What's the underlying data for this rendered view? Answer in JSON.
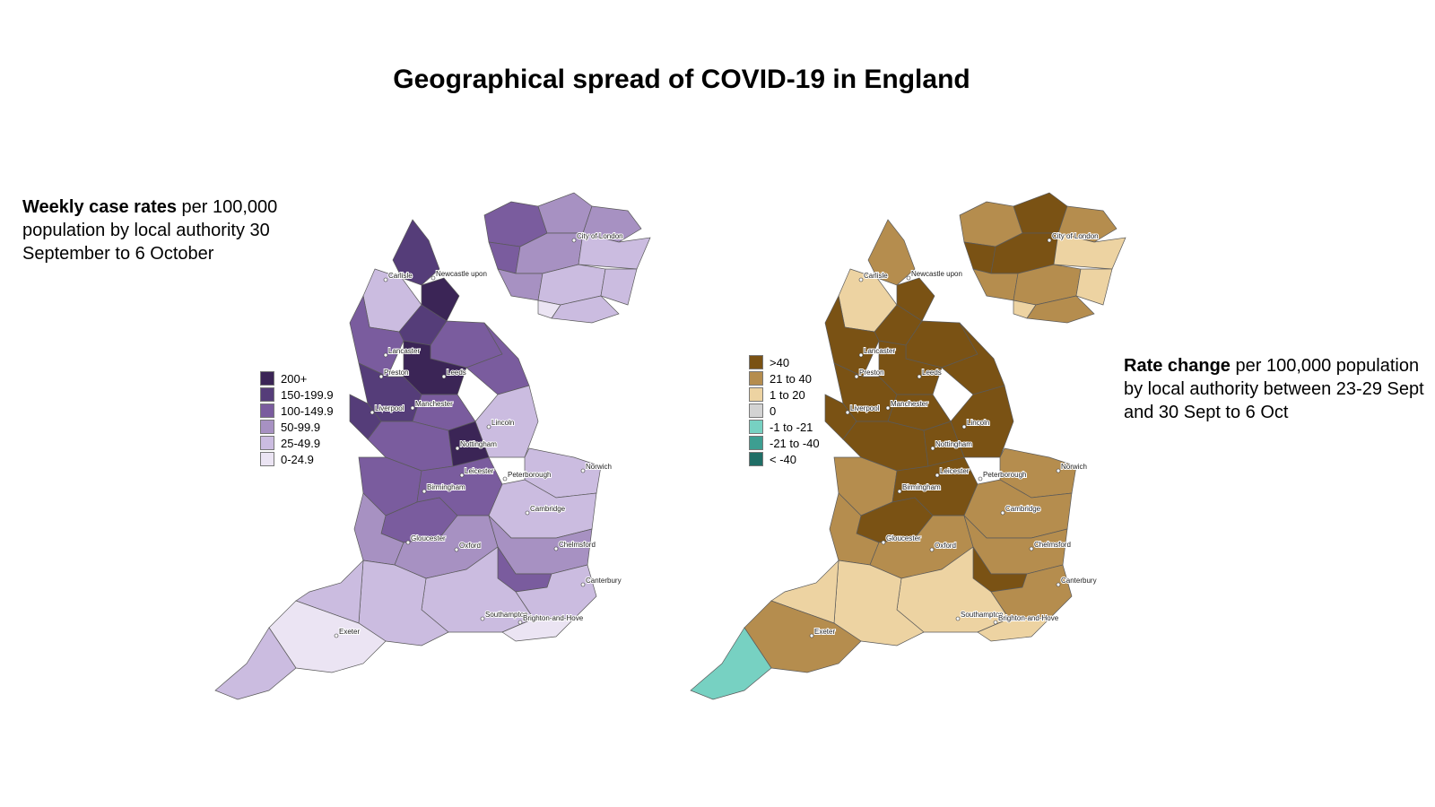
{
  "title": "Geographical spread of COVID-19 in England",
  "left_panel": {
    "caption_bold": "Weekly case rates",
    "caption_rest": " per 100,000 population by local authority 30 September to 6 October",
    "legend": [
      {
        "label": "200+",
        "color": "#3b2556"
      },
      {
        "label": "150-199.9",
        "color": "#553d79"
      },
      {
        "label": "100-149.9",
        "color": "#7a5c9e"
      },
      {
        "label": "50-99.9",
        "color": "#a791c2"
      },
      {
        "label": "25-49.9",
        "color": "#cbbce0"
      },
      {
        "label": "0-24.9",
        "color": "#ebe4f3"
      }
    ]
  },
  "right_panel": {
    "caption_bold": "Rate change",
    "caption_rest": " per 100,000 population by local authority between 23-29 Sept and 30 Sept to 6 Oct",
    "legend": [
      {
        "label": ">40",
        "color": "#7a5214"
      },
      {
        "label": "21 to 40",
        "color": "#b58d4e"
      },
      {
        "label": "1 to 20",
        "color": "#edd3a2"
      },
      {
        "label": "0",
        "color": "#d3d3d3"
      },
      {
        "label": "-1 to -21",
        "color": "#77d1c2"
      },
      {
        "label": "-21 to -40",
        "color": "#3d9e91"
      },
      {
        "label": "< -40",
        "color": "#1f6e66"
      }
    ]
  },
  "places": [
    "Newcastle upon",
    "Carlisle",
    "Lancaster",
    "Preston",
    "Leeds",
    "Liverpool",
    "Manchester",
    "Lincoln",
    "Nottingham",
    "Leicester",
    "Peterborough",
    "Norwich",
    "Birmingham",
    "Cambridge",
    "Gloucester",
    "Oxford",
    "Chelmsford",
    "City of London",
    "Canterbury",
    "Southampton",
    "Brighton-and-Hove",
    "Exeter"
  ],
  "london_label": "City of London"
}
